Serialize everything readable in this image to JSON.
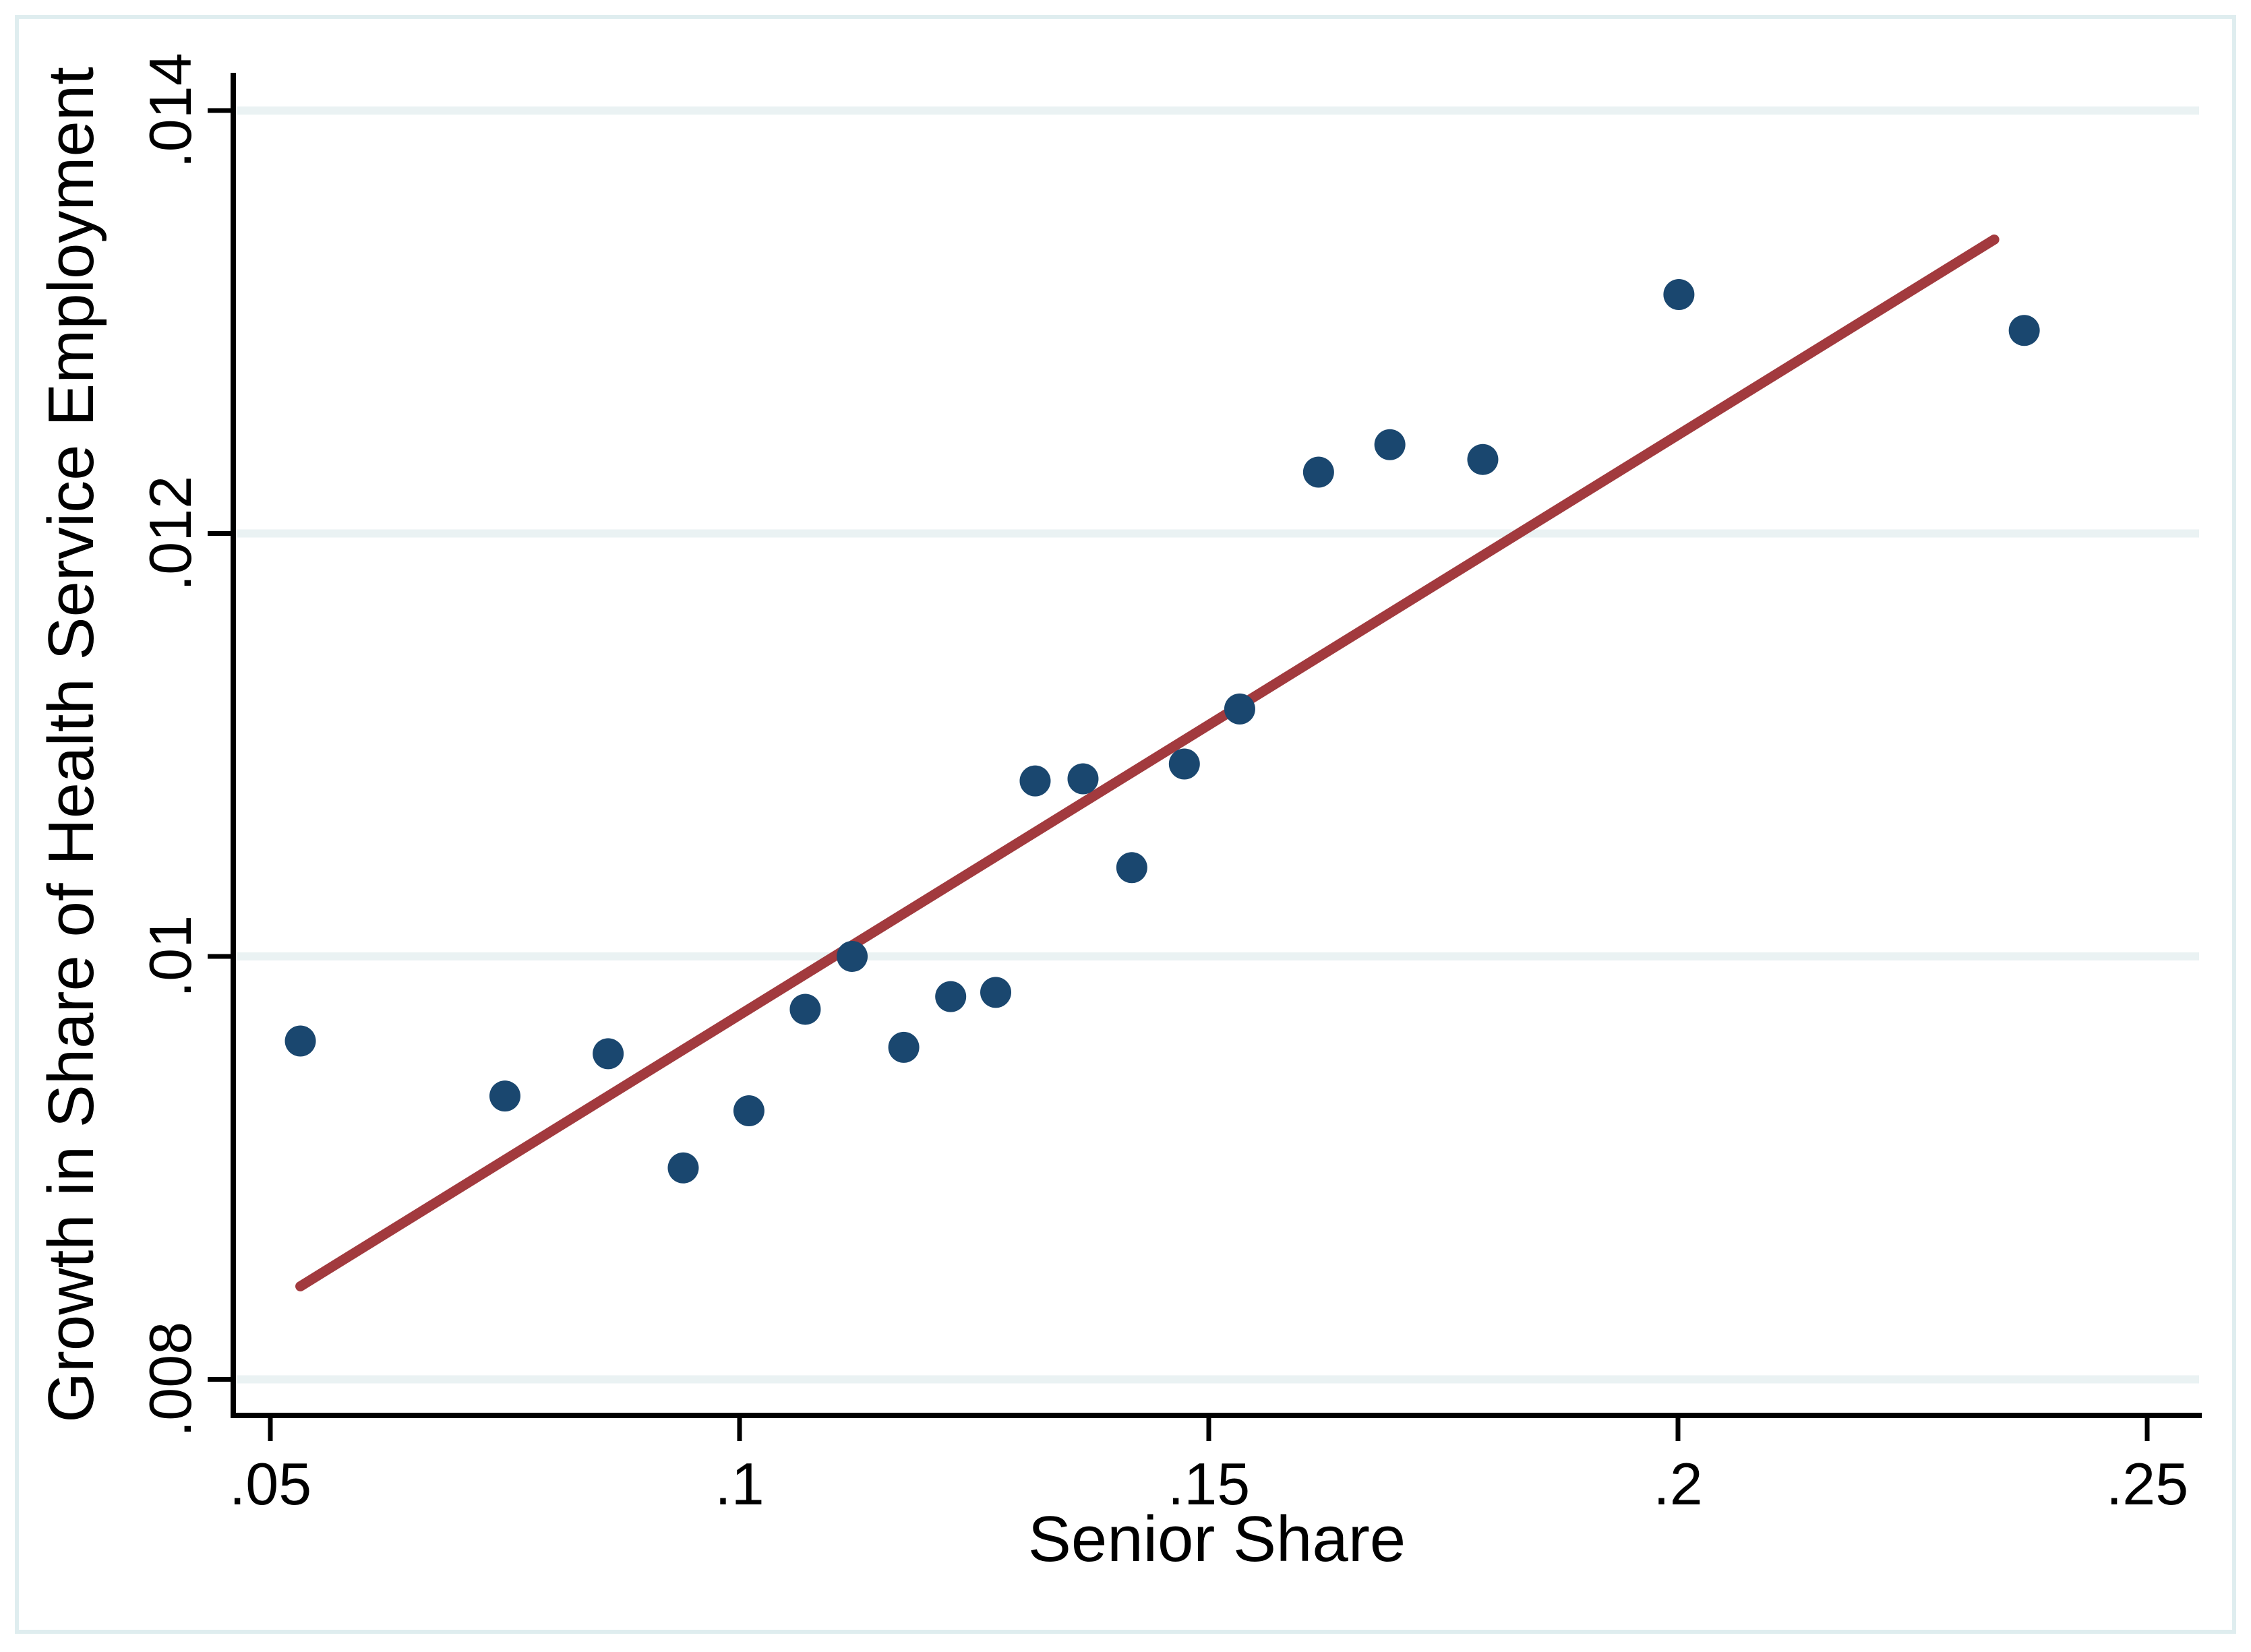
{
  "chart_data": {
    "type": "scatter",
    "title": "",
    "xlabel": "Senior Share",
    "ylabel": "Growth in Share of Health Service Employment",
    "x_ticks": {
      "values": [
        0.05,
        0.1,
        0.15,
        0.2,
        0.25
      ],
      "labels": [
        ".05",
        ".1",
        ".15",
        ".2",
        ".25"
      ]
    },
    "y_ticks": {
      "values": [
        0.008,
        0.01,
        0.012,
        0.014
      ],
      "labels": [
        ".008",
        ".01",
        ".012",
        ".014"
      ]
    },
    "xlim": [
      0.0463,
      0.2555
    ],
    "ylim": [
      0.00784,
      0.01417
    ],
    "grid": "horizontal-gridlines-only",
    "legend": "none",
    "series": [
      {
        "name": "observations",
        "marker": "circle",
        "color": "#1A476F",
        "points": [
          [
            0.0532,
            0.0096
          ],
          [
            0.075,
            0.00934
          ],
          [
            0.086,
            0.00954
          ],
          [
            0.094,
            0.009
          ],
          [
            0.101,
            0.00927
          ],
          [
            0.107,
            0.00975
          ],
          [
            0.112,
            0.01
          ],
          [
            0.1175,
            0.00957
          ],
          [
            0.1225,
            0.00981
          ],
          [
            0.1273,
            0.00983
          ],
          [
            0.1315,
            0.01083
          ],
          [
            0.1366,
            0.01084
          ],
          [
            0.1418,
            0.01042
          ],
          [
            0.1474,
            0.01091
          ],
          [
            0.1533,
            0.01117
          ],
          [
            0.1617,
            0.01229
          ],
          [
            0.1693,
            0.01242
          ],
          [
            0.1792,
            0.01235
          ],
          [
            0.2001,
            0.01313
          ],
          [
            0.2369,
            0.01296
          ]
        ]
      },
      {
        "name": "linear-fit",
        "marker": "line",
        "color": "#A23A3E",
        "endpoints": [
          [
            0.0532,
            0.00844
          ],
          [
            0.2337,
            0.01339
          ]
        ]
      }
    ],
    "colors": {
      "point": "#1A476F",
      "fit_line": "#A23A3E",
      "gridline": "#EAF2F3",
      "figure_border": "#DFEDEF",
      "axis": "#000000",
      "background": "#FFFFFF"
    }
  }
}
